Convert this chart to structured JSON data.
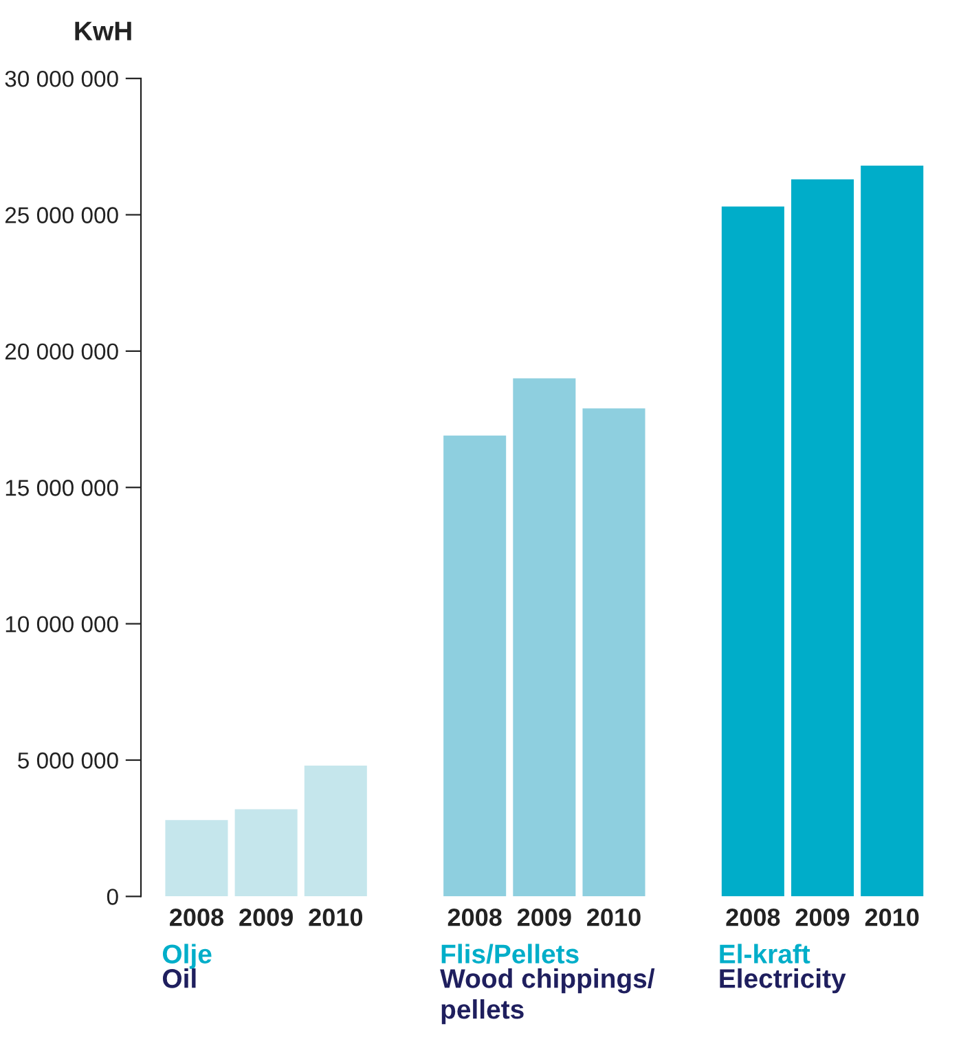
{
  "chart_data": {
    "type": "bar",
    "ylabel": "KwH",
    "categories": [
      "2008",
      "2009",
      "2010",
      null,
      "2008",
      "2009",
      "2010",
      null,
      "2008",
      "2009",
      "2010"
    ],
    "values": [
      2800000.0,
      3200000.0,
      4800000.0,
      null,
      16900000.0,
      19000000.0,
      17900000.0,
      null,
      25300000.0,
      26300000.0,
      26800000.0
    ],
    "colors": [
      "#c5e6ec",
      "#c5e6ec",
      "#c5e6ec",
      null,
      "#8ecfdf",
      "#8ecfdf",
      "#8ecfdf",
      null,
      "#00adc9",
      "#00adc9",
      "#00adc9"
    ],
    "ylim": [
      0,
      30000000
    ],
    "yticks": [
      0,
      {
        "value": 5000000,
        "label": "5 000 000"
      },
      {
        "value": 10000000,
        "label": "10 000 000"
      },
      {
        "value": 15000000,
        "label": "15 000 000"
      },
      {
        "value": 20000000,
        "label": "20 000 000"
      },
      {
        "value": 25000000,
        "label": "25 000 000"
      },
      {
        "value": 30000000,
        "label": "30 000 000"
      }
    ],
    "grid": false,
    "legend": false,
    "annotations": [
      "Olje",
      "Oil",
      "Flis/Pellets",
      "Wood chippings/\npellets",
      "El-kraft",
      "Electricity"
    ]
  }
}
